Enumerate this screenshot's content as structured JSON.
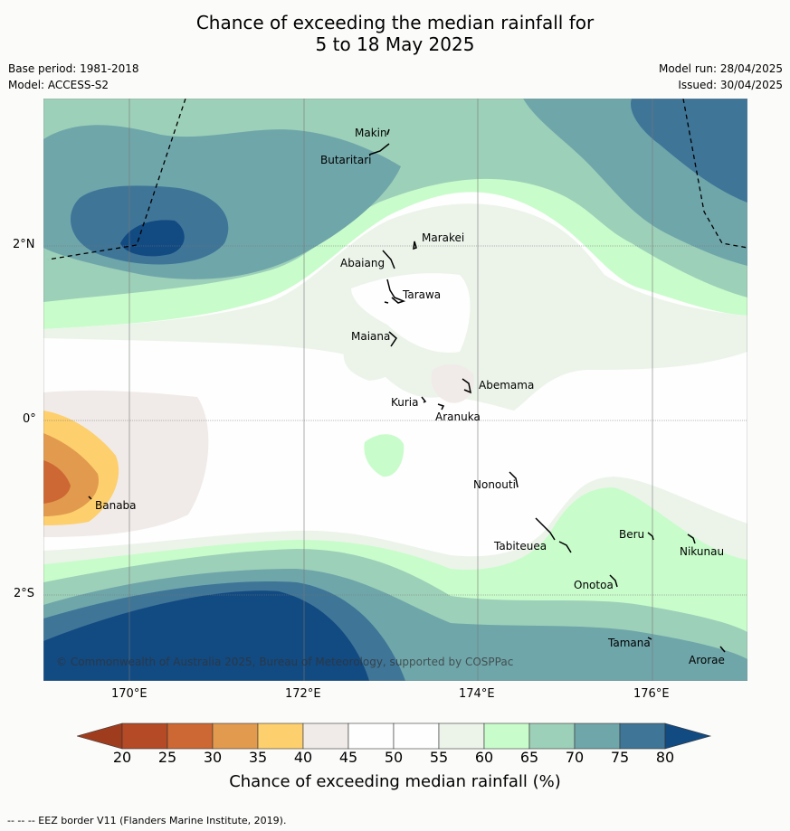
{
  "header": {
    "title_line1": "Chance of exceeding the median rainfall for",
    "title_line2": "5 to 18 May 2025",
    "base_period": "Base period: 1981-2018",
    "model": "Model: ACCESS-S2",
    "model_run": "Model run: 28/04/2025",
    "issued": "Issued: 30/04/2025"
  },
  "map": {
    "lat_labels": [
      "2°N",
      "0°",
      "2°S"
    ],
    "lon_labels": [
      "170°E",
      "172°E",
      "174°E",
      "176°E"
    ],
    "places": [
      "Makin",
      "Butaritari",
      "Marakei",
      "Abaiang",
      "Tarawa",
      "Maiana",
      "Abemama",
      "Kuria",
      "Aranuka",
      "Banaba",
      "Nonouti",
      "Beru",
      "Tabiteuea",
      "Nikunau",
      "Onotoa",
      "Tamana",
      "Arorae"
    ],
    "copyright": "© Commonwealth of Australia 2025, Bureau of Meteorology, supported by COSPPac"
  },
  "colorbar": {
    "ticks": [
      "20",
      "25",
      "30",
      "35",
      "40",
      "45",
      "50",
      "55",
      "60",
      "65",
      "70",
      "75",
      "80"
    ],
    "colors": [
      "#a03c1e",
      "#b44a26",
      "#cd6834",
      "#e29a4e",
      "#fdcf6d",
      "#f0ebe8",
      "#fdfefd",
      "#fdfefd",
      "#ecf4ea",
      "#c9fccb",
      "#9dd0b8",
      "#6fa6aa",
      "#3f7597",
      "#124a82"
    ],
    "title": "Chance of exceeding median rainfall (%)"
  },
  "footer": {
    "eez_note": "--  --  -- EEZ border V11 (Flanders Marine Institute, 2019)."
  }
}
